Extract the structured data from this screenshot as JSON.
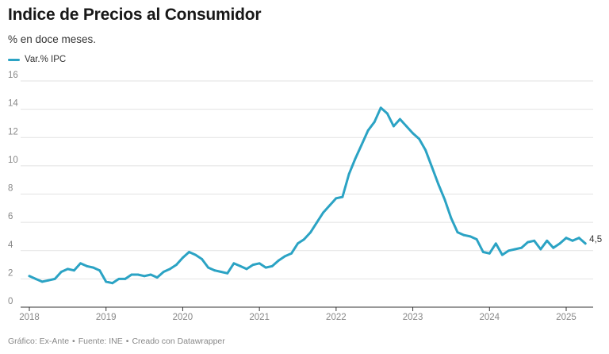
{
  "header": {
    "title": "Indice de Precios al Consumidor",
    "subtitle": "% en doce meses."
  },
  "footer": {
    "graphic": "Gráfico: Ex-Ante",
    "source": "Fuente: INE",
    "credit": "Creado con Datawrapper",
    "separator": "•"
  },
  "colors": {
    "line": "#2ba3c4",
    "grid": "#e2e2e2",
    "axis": "#333333"
  },
  "chart_data": {
    "type": "line",
    "title": "Indice de Precios al Consumidor",
    "subtitle": "% en doce meses.",
    "xlabel": "",
    "ylabel": "",
    "ylim": [
      0,
      16
    ],
    "yticks": [
      0,
      2,
      4,
      6,
      8,
      10,
      12,
      14,
      16
    ],
    "xticks": [
      2018,
      2019,
      2020,
      2021,
      2022,
      2023,
      2024,
      2025
    ],
    "xlim": [
      2018,
      2025.3
    ],
    "grid": true,
    "legend_position": "top-left",
    "end_label": "4,5",
    "series": [
      {
        "name": "Var.% IPC",
        "x": [
          2018.0,
          2018.083,
          2018.167,
          2018.25,
          2018.333,
          2018.417,
          2018.5,
          2018.583,
          2018.667,
          2018.75,
          2018.833,
          2018.917,
          2019.0,
          2019.083,
          2019.167,
          2019.25,
          2019.333,
          2019.417,
          2019.5,
          2019.583,
          2019.667,
          2019.75,
          2019.833,
          2019.917,
          2020.0,
          2020.083,
          2020.167,
          2020.25,
          2020.333,
          2020.417,
          2020.5,
          2020.583,
          2020.667,
          2020.75,
          2020.833,
          2020.917,
          2021.0,
          2021.083,
          2021.167,
          2021.25,
          2021.333,
          2021.417,
          2021.5,
          2021.583,
          2021.667,
          2021.75,
          2021.833,
          2021.917,
          2022.0,
          2022.083,
          2022.167,
          2022.25,
          2022.333,
          2022.417,
          2022.5,
          2022.583,
          2022.667,
          2022.75,
          2022.833,
          2022.917,
          2023.0,
          2023.083,
          2023.167,
          2023.25,
          2023.333,
          2023.417,
          2023.5,
          2023.583,
          2023.667,
          2023.75,
          2023.833,
          2023.917,
          2024.0,
          2024.083,
          2024.167,
          2024.25,
          2024.333,
          2024.417,
          2024.5,
          2024.583,
          2024.667,
          2024.75,
          2024.833,
          2024.917,
          2025.0,
          2025.083,
          2025.167,
          2025.25
        ],
        "values": [
          2.2,
          2.0,
          1.8,
          1.9,
          2.0,
          2.5,
          2.7,
          2.6,
          3.1,
          2.9,
          2.8,
          2.6,
          1.8,
          1.7,
          2.0,
          2.0,
          2.3,
          2.3,
          2.2,
          2.3,
          2.1,
          2.5,
          2.7,
          3.0,
          3.5,
          3.9,
          3.7,
          3.4,
          2.8,
          2.6,
          2.5,
          2.4,
          3.1,
          2.9,
          2.7,
          3.0,
          3.1,
          2.8,
          2.9,
          3.3,
          3.6,
          3.8,
          4.5,
          4.8,
          5.3,
          6.0,
          6.7,
          7.2,
          7.7,
          7.8,
          9.4,
          10.5,
          11.5,
          12.5,
          13.1,
          14.1,
          13.7,
          12.8,
          13.3,
          12.8,
          12.3,
          11.9,
          11.1,
          9.9,
          8.7,
          7.6,
          6.3,
          5.3,
          5.1,
          5.0,
          4.8,
          3.9,
          3.8,
          4.5,
          3.7,
          4.0,
          4.1,
          4.2,
          4.6,
          4.7,
          4.1,
          4.7,
          4.2,
          4.5,
          4.9,
          4.7,
          4.9,
          4.5
        ]
      }
    ]
  }
}
